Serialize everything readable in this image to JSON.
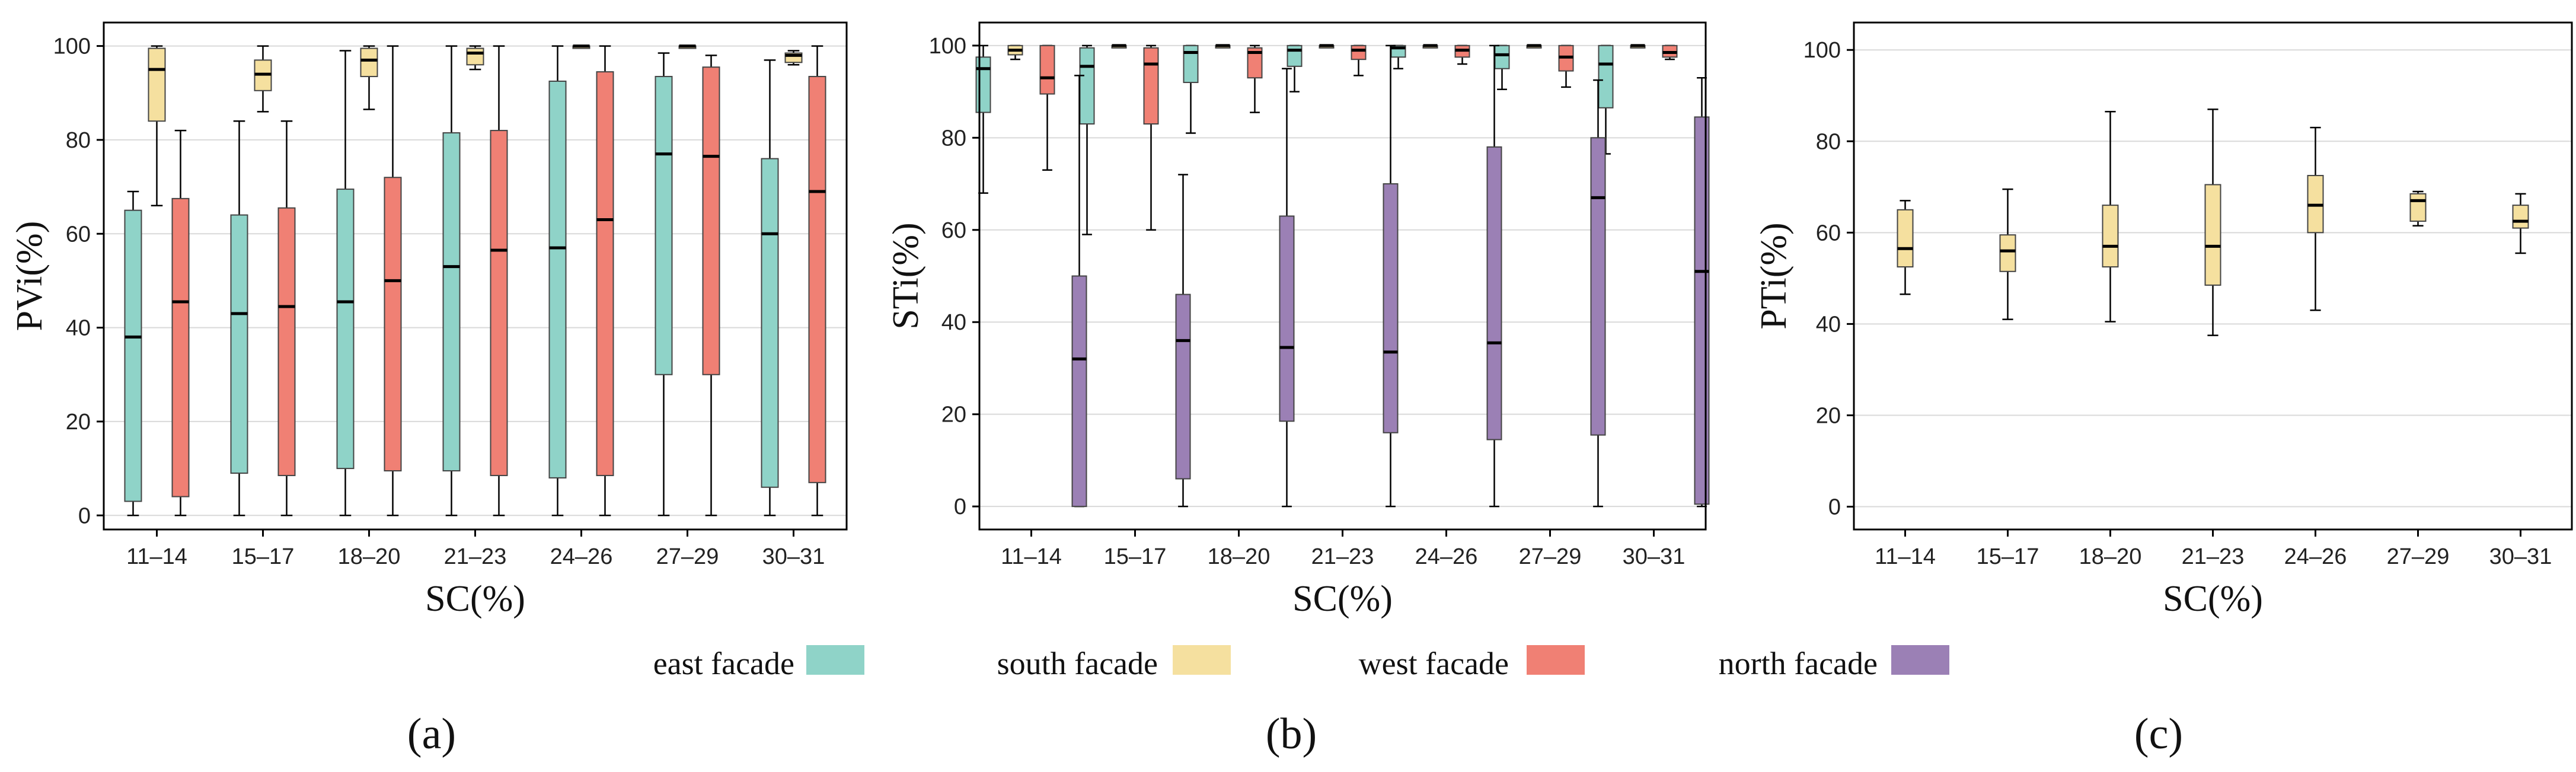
{
  "chart_data": [
    {
      "type": "boxplot",
      "panel_label": "(a)",
      "xlabel": "SC(%)",
      "ylabel": "PVi(%)",
      "ylim": [
        -3,
        105
      ],
      "yticks": [
        0,
        20,
        40,
        60,
        80,
        100
      ],
      "grid": true,
      "categories": [
        "11–14",
        "15–17",
        "18–20",
        "21–23",
        "24–26",
        "27–29",
        "30–31"
      ],
      "series": [
        {
          "name": "east facade",
          "color": "#8fd3c8",
          "boxes": [
            {
              "min": 0,
              "q1": 3,
              "median": 38,
              "q3": 65,
              "max": 69
            },
            {
              "min": 0,
              "q1": 9,
              "median": 43,
              "q3": 64,
              "max": 84
            },
            {
              "min": 0,
              "q1": 10,
              "median": 45.5,
              "q3": 69.5,
              "max": 99
            },
            {
              "min": 0,
              "q1": 9.5,
              "median": 53,
              "q3": 81.5,
              "max": 100
            },
            {
              "min": 0,
              "q1": 8,
              "median": 57,
              "q3": 92.5,
              "max": 100
            },
            {
              "min": 0,
              "q1": 30,
              "median": 77,
              "q3": 93.5,
              "max": 98.5
            },
            {
              "min": 0,
              "q1": 6,
              "median": 60,
              "q3": 76,
              "max": 97
            }
          ]
        },
        {
          "name": "south facade",
          "color": "#f5e09f",
          "boxes": [
            {
              "min": 66,
              "q1": 84,
              "median": 95,
              "q3": 99.5,
              "max": 100
            },
            {
              "min": 86,
              "q1": 90.5,
              "median": 94,
              "q3": 97,
              "max": 100
            },
            {
              "min": 86.5,
              "q1": 93.5,
              "median": 97,
              "q3": 99.5,
              "max": 100
            },
            {
              "min": 95,
              "q1": 96,
              "median": 98.5,
              "q3": 99.5,
              "max": 100
            },
            {
              "min": 100,
              "q1": 100,
              "median": 100,
              "q3": 100,
              "max": 100
            },
            {
              "min": 100,
              "q1": 100,
              "median": 100,
              "q3": 100,
              "max": 100
            },
            {
              "min": 96,
              "q1": 96.5,
              "median": 98,
              "q3": 98.5,
              "max": 99
            }
          ]
        },
        {
          "name": "west facade",
          "color": "#f08074",
          "boxes": [
            {
              "min": 0,
              "q1": 4,
              "median": 45.5,
              "q3": 67.5,
              "max": 82
            },
            {
              "min": 0,
              "q1": 8.5,
              "median": 44.5,
              "q3": 65.5,
              "max": 84
            },
            {
              "min": 0,
              "q1": 9.5,
              "median": 50,
              "q3": 72,
              "max": 100
            },
            {
              "min": 0,
              "q1": 8.5,
              "median": 56.5,
              "q3": 82,
              "max": 100
            },
            {
              "min": 0,
              "q1": 8.5,
              "median": 63,
              "q3": 94.5,
              "max": 100
            },
            {
              "min": 0,
              "q1": 30,
              "median": 76.5,
              "q3": 95.5,
              "max": 98
            },
            {
              "min": 0,
              "q1": 7,
              "median": 69,
              "q3": 93.5,
              "max": 100
            }
          ]
        }
      ]
    },
    {
      "type": "boxplot",
      "panel_label": "(b)",
      "xlabel": "SC(%)",
      "ylabel": "STi(%)",
      "ylim": [
        -5,
        105
      ],
      "yticks": [
        0,
        20,
        40,
        60,
        80,
        100
      ],
      "grid": true,
      "categories": [
        "11–14",
        "15–17",
        "18–20",
        "21–23",
        "24–26",
        "27–29",
        "30–31"
      ],
      "series": [
        {
          "name": "east facade",
          "color": "#8fd3c8",
          "boxes": [
            {
              "min": 68,
              "q1": 85.5,
              "median": 95,
              "q3": 97.5,
              "max": 100
            },
            {
              "min": 59,
              "q1": 83,
              "median": 95.5,
              "q3": 99.5,
              "max": 100
            },
            {
              "min": 81,
              "q1": 92,
              "median": 98.5,
              "q3": 100,
              "max": 100
            },
            {
              "min": 90,
              "q1": 95.5,
              "median": 99,
              "q3": 100,
              "max": 100
            },
            {
              "min": 95,
              "q1": 97.5,
              "median": 99.5,
              "q3": 100,
              "max": 100
            },
            {
              "min": 90.5,
              "q1": 95,
              "median": 98,
              "q3": 100,
              "max": 100
            },
            {
              "min": 76.5,
              "q1": 86.5,
              "median": 96,
              "q3": 100,
              "max": 100
            }
          ]
        },
        {
          "name": "south facade",
          "color": "#f5e09f",
          "boxes": [
            {
              "min": 97,
              "q1": 98,
              "median": 99,
              "q3": 100,
              "max": 100
            },
            {
              "min": 100,
              "q1": 100,
              "median": 100,
              "q3": 100,
              "max": 100
            },
            {
              "min": 100,
              "q1": 100,
              "median": 100,
              "q3": 100,
              "max": 100
            },
            {
              "min": 100,
              "q1": 100,
              "median": 100,
              "q3": 100,
              "max": 100
            },
            {
              "min": 100,
              "q1": 100,
              "median": 100,
              "q3": 100,
              "max": 100
            },
            {
              "min": 100,
              "q1": 100,
              "median": 100,
              "q3": 100,
              "max": 100
            },
            {
              "min": 100,
              "q1": 100,
              "median": 100,
              "q3": 100,
              "max": 100
            }
          ]
        },
        {
          "name": "west facade",
          "color": "#f08074",
          "boxes": [
            {
              "min": 73,
              "q1": 89.5,
              "median": 93,
              "q3": 100,
              "max": 100
            },
            {
              "min": 60,
              "q1": 83,
              "median": 96,
              "q3": 99.5,
              "max": 100
            },
            {
              "min": 85.5,
              "q1": 93,
              "median": 98.5,
              "q3": 99.5,
              "max": 100
            },
            {
              "min": 93.5,
              "q1": 97,
              "median": 99,
              "q3": 100,
              "max": 100
            },
            {
              "min": 96,
              "q1": 97.5,
              "median": 99,
              "q3": 100,
              "max": 100
            },
            {
              "min": 91,
              "q1": 94.5,
              "median": 97.5,
              "q3": 100,
              "max": 100
            },
            {
              "min": 97,
              "q1": 97.5,
              "median": 98.5,
              "q3": 100,
              "max": 100
            }
          ]
        },
        {
          "name": "north facade",
          "color": "#9b80b5",
          "boxes": [
            {
              "min": 0,
              "q1": 0,
              "median": 32,
              "q3": 50,
              "max": 93.5
            },
            {
              "min": 0,
              "q1": 6,
              "median": 36,
              "q3": 46,
              "max": 72
            },
            {
              "min": 0,
              "q1": 18.5,
              "median": 34.5,
              "q3": 63,
              "max": 95
            },
            {
              "min": 0,
              "q1": 16,
              "median": 33.5,
              "q3": 70,
              "max": 100
            },
            {
              "min": 0,
              "q1": 14.5,
              "median": 35.5,
              "q3": 78,
              "max": 100
            },
            {
              "min": 0,
              "q1": 15.5,
              "median": 67,
              "q3": 80,
              "max": 92.5
            },
            {
              "min": 0,
              "q1": 0.5,
              "median": 51,
              "q3": 84.5,
              "max": 93
            }
          ]
        }
      ]
    },
    {
      "type": "boxplot",
      "panel_label": "(c)",
      "xlabel": "SC(%)",
      "ylabel": "PTi(%)",
      "ylim": [
        -5,
        106
      ],
      "yticks": [
        0,
        20,
        40,
        60,
        80,
        100
      ],
      "grid": true,
      "categories": [
        "11–14",
        "15–17",
        "18–20",
        "21–23",
        "24–26",
        "27–29",
        "30–31"
      ],
      "series": [
        {
          "name": "south facade",
          "color": "#f5e09f",
          "boxes": [
            {
              "min": 46.5,
              "q1": 52.5,
              "median": 56.5,
              "q3": 65,
              "max": 67
            },
            {
              "min": 41,
              "q1": 51.5,
              "median": 56,
              "q3": 59.5,
              "max": 69.5
            },
            {
              "min": 40.5,
              "q1": 52.5,
              "median": 57,
              "q3": 66,
              "max": 86.5
            },
            {
              "min": 37.5,
              "q1": 48.5,
              "median": 57,
              "q3": 70.5,
              "max": 87
            },
            {
              "min": 43,
              "q1": 60,
              "median": 66,
              "q3": 72.5,
              "max": 83
            },
            {
              "min": 61.5,
              "q1": 62.5,
              "median": 67,
              "q3": 68.5,
              "max": 69
            },
            {
              "min": 55.5,
              "q1": 61,
              "median": 62.5,
              "q3": 66,
              "max": 68.5
            }
          ]
        }
      ]
    }
  ],
  "legend": [
    {
      "label": "east facade",
      "color": "#8fd3c8"
    },
    {
      "label": "south facade",
      "color": "#f5e09f"
    },
    {
      "label": "west facade",
      "color": "#f08074"
    },
    {
      "label": "north facade",
      "color": "#9b80b5"
    }
  ]
}
